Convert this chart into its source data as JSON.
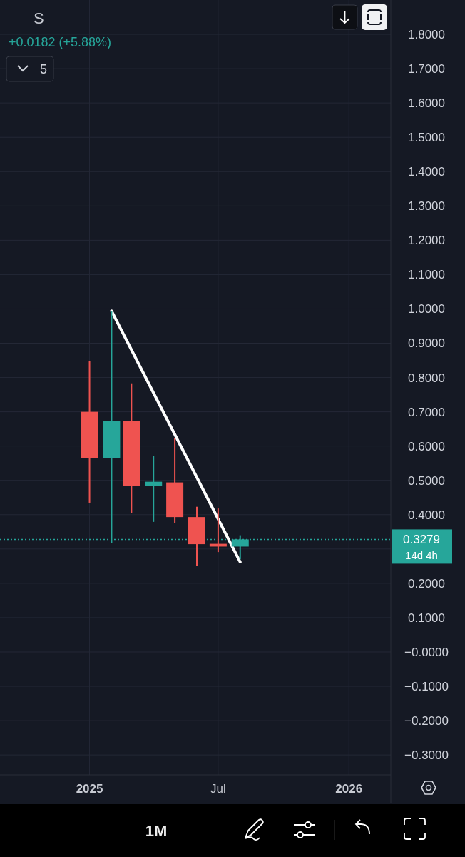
{
  "chart_data": {
    "type": "candlestick",
    "title": "S",
    "subtitle": "+0.0182 (+5.88%)",
    "x": [
      "2025-01",
      "2025-02",
      "2025-03",
      "2025-04",
      "2025-05",
      "2025-06",
      "2025-07",
      "2025-08"
    ],
    "ohlc": [
      [
        0.7,
        0.848,
        0.435,
        0.564
      ],
      [
        0.564,
        0.994,
        0.317,
        0.673
      ],
      [
        0.673,
        0.783,
        0.404,
        0.483
      ],
      [
        0.483,
        0.572,
        0.379,
        0.496
      ],
      [
        0.494,
        0.624,
        0.375,
        0.393
      ],
      [
        0.393,
        0.423,
        0.251,
        0.314
      ],
      [
        0.315,
        0.418,
        0.291,
        0.307
      ],
      [
        0.307,
        0.34,
        0.27,
        0.3279
      ]
    ],
    "colors": [
      "#ef5350",
      "#26a69a",
      "#ef5350",
      "#26a69a",
      "#ef5350",
      "#ef5350",
      "#ef5350",
      "#26a69a"
    ],
    "series": [
      {
        "type": "line",
        "x": [
          "2025-02",
          "2025-08"
        ],
        "values": [
          0.994,
          0.262
        ],
        "color": "#ffffff"
      }
    ],
    "xlim": [
      "2024-08-28",
      "2026-03-01"
    ],
    "xticks": [
      {
        "value": "2025-01",
        "label": "2025"
      },
      {
        "value": "2025-07",
        "label": "Jul"
      },
      {
        "value": "2026-01",
        "label": "2026"
      }
    ],
    "ylim": [
      -0.358,
      1.9
    ],
    "yticks": [
      {
        "value": -0.3,
        "label": "−0.3000"
      },
      {
        "value": -0.2,
        "label": "−0.2000"
      },
      {
        "value": -0.1,
        "label": "−0.1000"
      },
      {
        "value": 0,
        "label": "−0.0000"
      },
      {
        "value": 0.1,
        "label": "0.1000"
      },
      {
        "value": 0.2,
        "label": "0.2000"
      },
      {
        "value": 0.3,
        "label": null
      },
      {
        "value": 0.4,
        "label": "0.4000"
      },
      {
        "value": 0.5,
        "label": "0.5000"
      },
      {
        "value": 0.6,
        "label": "0.6000"
      },
      {
        "value": 0.7,
        "label": "0.7000"
      },
      {
        "value": 0.8,
        "label": "0.8000"
      },
      {
        "value": 0.9,
        "label": "0.9000"
      },
      {
        "value": 1.0,
        "label": "1.0000"
      },
      {
        "value": 1.1,
        "label": "1.1000"
      },
      {
        "value": 1.2,
        "label": "1.2000"
      },
      {
        "value": 1.3,
        "label": "1.3000"
      },
      {
        "value": 1.4,
        "label": "1.4000"
      },
      {
        "value": 1.5,
        "label": "1.5000"
      },
      {
        "value": 1.6,
        "label": "1.6000"
      },
      {
        "value": 1.7,
        "label": "1.7000"
      },
      {
        "value": 1.8,
        "label": "1.8000"
      }
    ],
    "grid": true,
    "ref_lines": [
      {
        "axis": "y",
        "value": 0.3279,
        "label": "0.3279",
        "color": "#26a69a",
        "line_style": "dotted"
      }
    ],
    "annotations": [
      "5",
      "14d 4h",
      "1M"
    ]
  }
}
